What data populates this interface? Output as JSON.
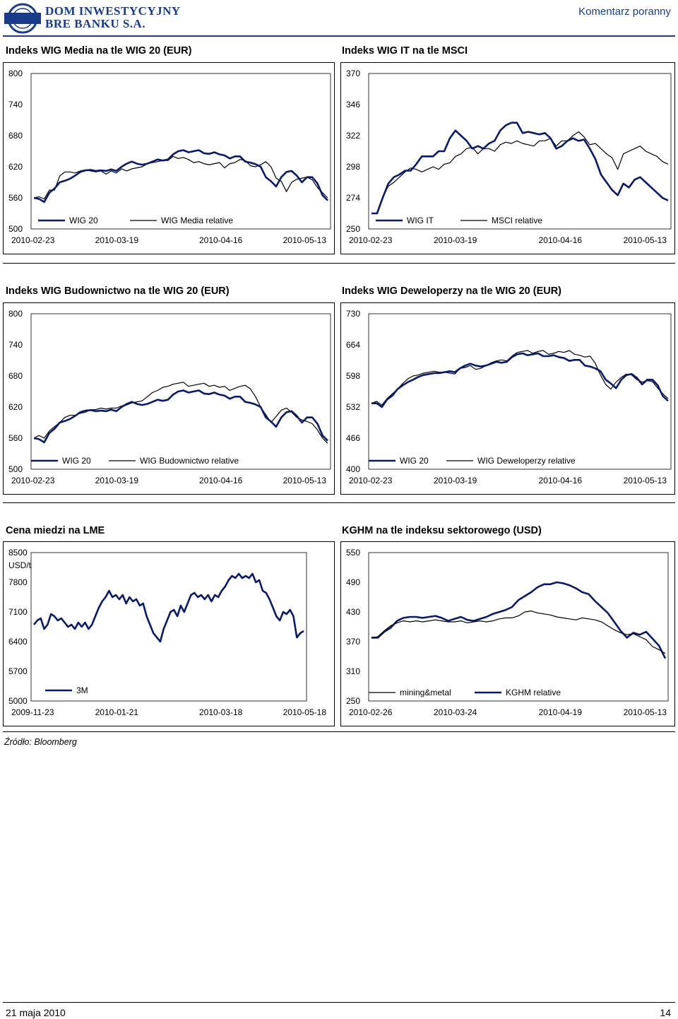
{
  "header": {
    "brand_line1": "DOM INWESTYCYJNY",
    "brand_line2": "BRE BANKU S.A.",
    "logo_text": "BRE",
    "doc_type": "Komentarz poranny"
  },
  "source": "Źródło: Bloomberg",
  "footer": {
    "date": "21 maja 2010",
    "page": "14"
  },
  "colors": {
    "brand": "#1a3a8a",
    "series_main": "#0a1a6b",
    "series_secondary": "#000000"
  },
  "chart_data": [
    {
      "id": "media",
      "type": "line",
      "title": "Indeks WIG Media na tle WIG 20 (EUR)",
      "ylim": [
        500,
        800
      ],
      "yticks": [
        "800",
        "740",
        "680",
        "620",
        "560",
        "500"
      ],
      "xticks": [
        "2010-02-23",
        "2010-03-19",
        "2010-04-16",
        "2010-05-13"
      ],
      "ylabel": "",
      "series": [
        {
          "name": "WIG 20",
          "values": [
            560,
            558,
            552,
            570,
            578,
            590,
            593,
            597,
            603,
            610,
            613,
            614,
            612,
            613,
            612,
            615,
            612,
            620,
            626,
            630,
            626,
            624,
            626,
            630,
            634,
            632,
            634,
            644,
            650,
            652,
            648,
            650,
            652,
            646,
            645,
            648,
            644,
            642,
            636,
            640,
            640,
            630,
            628,
            625,
            620,
            600,
            592,
            582,
            600,
            610,
            612,
            603,
            590,
            600,
            600,
            588,
            565,
            555
          ]
        },
        {
          "name": "WIG Media relative",
          "values": [
            560,
            562,
            558,
            575,
            575,
            602,
            610,
            610,
            608,
            612,
            614,
            612,
            610,
            612,
            606,
            612,
            608,
            616,
            612,
            616,
            618,
            620,
            626,
            628,
            630,
            632,
            632,
            640,
            636,
            638,
            634,
            628,
            630,
            626,
            624,
            626,
            628,
            618,
            626,
            628,
            634,
            632,
            622,
            620,
            624,
            630,
            620,
            598,
            592,
            572,
            590,
            596,
            598,
            600,
            595,
            580,
            570,
            560
          ]
        }
      ]
    },
    {
      "id": "it",
      "type": "line",
      "title": "Indeks WIG IT na tle MSCI",
      "ylim": [
        250,
        370
      ],
      "yticks": [
        "370",
        "346",
        "322",
        "298",
        "274",
        "250"
      ],
      "xticks": [
        "2010-02-23",
        "2010-03-19",
        "2010-04-16",
        "2010-05-13"
      ],
      "ylabel": "",
      "series": [
        {
          "name": "WIG IT",
          "values": [
            262,
            262,
            274,
            285,
            290,
            292,
            295,
            295,
            300,
            306,
            306,
            306,
            310,
            310,
            320,
            326,
            322,
            318,
            312,
            314,
            312,
            316,
            318,
            326,
            330,
            332,
            332,
            324,
            325,
            324,
            323,
            324,
            320,
            312,
            314,
            318,
            320,
            318,
            319,
            312,
            304,
            292,
            286,
            280,
            276,
            285,
            282,
            288,
            290,
            286,
            282,
            278,
            274,
            272
          ]
        },
        {
          "name": "MSCI relative",
          "values": [
            262,
            262,
            274,
            283,
            286,
            290,
            294,
            297,
            296,
            294,
            296,
            298,
            296,
            300,
            301,
            306,
            308,
            312,
            313,
            308,
            312,
            312,
            310,
            315,
            317,
            316,
            318,
            316,
            315,
            314,
            318,
            318,
            320,
            314,
            318,
            318,
            322,
            325,
            321,
            315,
            316,
            312,
            308,
            305,
            296,
            308,
            310,
            312,
            314,
            310,
            308,
            306,
            302,
            300
          ]
        }
      ]
    },
    {
      "id": "budownictwo",
      "type": "line",
      "title": "Indeks WIG Budownictwo na tle WIG 20 (EUR)",
      "ylim": [
        500,
        800
      ],
      "yticks": [
        "800",
        "740",
        "680",
        "620",
        "560",
        "500"
      ],
      "xticks": [
        "2010-02-23",
        "2010-03-19",
        "2010-04-16",
        "2010-05-13"
      ],
      "ylabel": "",
      "series": [
        {
          "name": "WIG 20",
          "values": [
            560,
            558,
            552,
            570,
            578,
            590,
            593,
            597,
            603,
            610,
            613,
            614,
            612,
            613,
            612,
            615,
            612,
            620,
            626,
            630,
            626,
            624,
            626,
            630,
            634,
            632,
            634,
            644,
            650,
            652,
            648,
            650,
            652,
            646,
            645,
            648,
            644,
            642,
            636,
            640,
            640,
            630,
            628,
            625,
            620,
            600,
            592,
            582,
            600,
            610,
            612,
            603,
            590,
            600,
            600,
            588,
            565,
            555
          ]
        },
        {
          "name": "WIG Budownictwo relative",
          "values": [
            560,
            565,
            560,
            574,
            582,
            590,
            600,
            604,
            604,
            608,
            610,
            615,
            615,
            618,
            616,
            618,
            618,
            622,
            624,
            628,
            630,
            632,
            640,
            648,
            652,
            658,
            660,
            664,
            666,
            668,
            660,
            662,
            664,
            666,
            660,
            662,
            658,
            660,
            652,
            656,
            660,
            662,
            655,
            640,
            620,
            605,
            590,
            602,
            614,
            618,
            610,
            600,
            595,
            592,
            588,
            576,
            560,
            550
          ]
        }
      ]
    },
    {
      "id": "deweloperzy",
      "type": "line",
      "title": "Indeks WIG Deweloperzy na tle WIG 20 (EUR)",
      "ylim": [
        400,
        730
      ],
      "yticks": [
        "730",
        "664",
        "598",
        "532",
        "466",
        "400"
      ],
      "xticks": [
        "2010-02-23",
        "2010-03-19",
        "2010-04-16",
        "2010-05-13"
      ],
      "ylabel": "",
      "series": [
        {
          "name": "WIG 20",
          "values": [
            540,
            540,
            532,
            548,
            556,
            570,
            578,
            585,
            590,
            596,
            600,
            602,
            604,
            604,
            606,
            608,
            606,
            614,
            620,
            624,
            620,
            618,
            620,
            624,
            628,
            626,
            628,
            638,
            644,
            646,
            642,
            644,
            646,
            640,
            640,
            642,
            638,
            636,
            630,
            632,
            632,
            620,
            618,
            614,
            608,
            590,
            582,
            572,
            590,
            600,
            602,
            594,
            580,
            590,
            590,
            578,
            555,
            545
          ]
        },
        {
          "name": "WIG Deweloperzy relative",
          "values": [
            540,
            544,
            536,
            550,
            560,
            570,
            582,
            592,
            598,
            600,
            604,
            606,
            608,
            606,
            606,
            604,
            602,
            614,
            616,
            620,
            612,
            614,
            620,
            626,
            630,
            632,
            630,
            640,
            648,
            650,
            652,
            646,
            650,
            652,
            644,
            646,
            650,
            648,
            652,
            644,
            642,
            638,
            640,
            625,
            600,
            580,
            570,
            585,
            595,
            602,
            600,
            590,
            585,
            588,
            586,
            572,
            560,
            550
          ]
        }
      ]
    },
    {
      "id": "miedz",
      "type": "line",
      "title": "Cena miedzi na LME",
      "ylim": [
        5000,
        8500
      ],
      "yticks": [
        "8500",
        "7800",
        "7100",
        "6400",
        "5700",
        "5000"
      ],
      "xticks": [
        "2009-11-23",
        "2010-01-21",
        "2010-03-18",
        "2010-05-18"
      ],
      "ylabel": "USD/t",
      "series": [
        {
          "name": "3M",
          "values": [
            6800,
            6900,
            6950,
            6700,
            6800,
            7050,
            7000,
            6900,
            6950,
            6850,
            6750,
            6800,
            6700,
            6850,
            6750,
            6850,
            6700,
            6800,
            7000,
            7200,
            7350,
            7450,
            7600,
            7450,
            7500,
            7400,
            7500,
            7300,
            7450,
            7350,
            7400,
            7250,
            7300,
            7000,
            6800,
            6600,
            6500,
            6400,
            6700,
            6900,
            7100,
            7150,
            7000,
            7250,
            7100,
            7300,
            7500,
            7550,
            7450,
            7500,
            7400,
            7500,
            7350,
            7500,
            7450,
            7600,
            7700,
            7850,
            7950,
            7900,
            8000,
            7900,
            7950,
            7900,
            8000,
            7800,
            7850,
            7600,
            7550,
            7400,
            7200,
            7000,
            6900,
            7100,
            7050,
            7150,
            7000,
            6500,
            6600,
            6650
          ]
        }
      ]
    },
    {
      "id": "kghm",
      "type": "line",
      "title": "KGHM na tle indeksu sektorowego (USD)",
      "ylim": [
        250,
        550
      ],
      "yticks": [
        "550",
        "490",
        "430",
        "370",
        "310",
        "250"
      ],
      "xticks": [
        "2010-02-26",
        "2010-03-24",
        "2010-04-19",
        "2010-05-13"
      ],
      "ylabel": "",
      "series": [
        {
          "name": "mining&metal",
          "values": [
            378,
            380,
            392,
            402,
            408,
            412,
            410,
            412,
            410,
            412,
            414,
            412,
            410,
            410,
            412,
            408,
            410,
            412,
            410,
            412,
            416,
            418,
            418,
            422,
            430,
            432,
            428,
            426,
            424,
            420,
            418,
            416,
            414,
            418,
            416,
            414,
            410,
            402,
            394,
            388,
            384,
            386,
            380,
            374,
            360,
            354,
            346
          ]
        },
        {
          "name": "KGHM relative",
          "values": [
            378,
            378,
            390,
            398,
            412,
            418,
            420,
            420,
            418,
            420,
            422,
            418,
            412,
            416,
            420,
            414,
            412,
            416,
            420,
            426,
            430,
            434,
            440,
            454,
            462,
            470,
            480,
            486,
            486,
            490,
            488,
            484,
            478,
            470,
            466,
            452,
            440,
            428,
            410,
            392,
            378,
            388,
            384,
            390,
            376,
            362,
            336
          ]
        }
      ]
    }
  ]
}
